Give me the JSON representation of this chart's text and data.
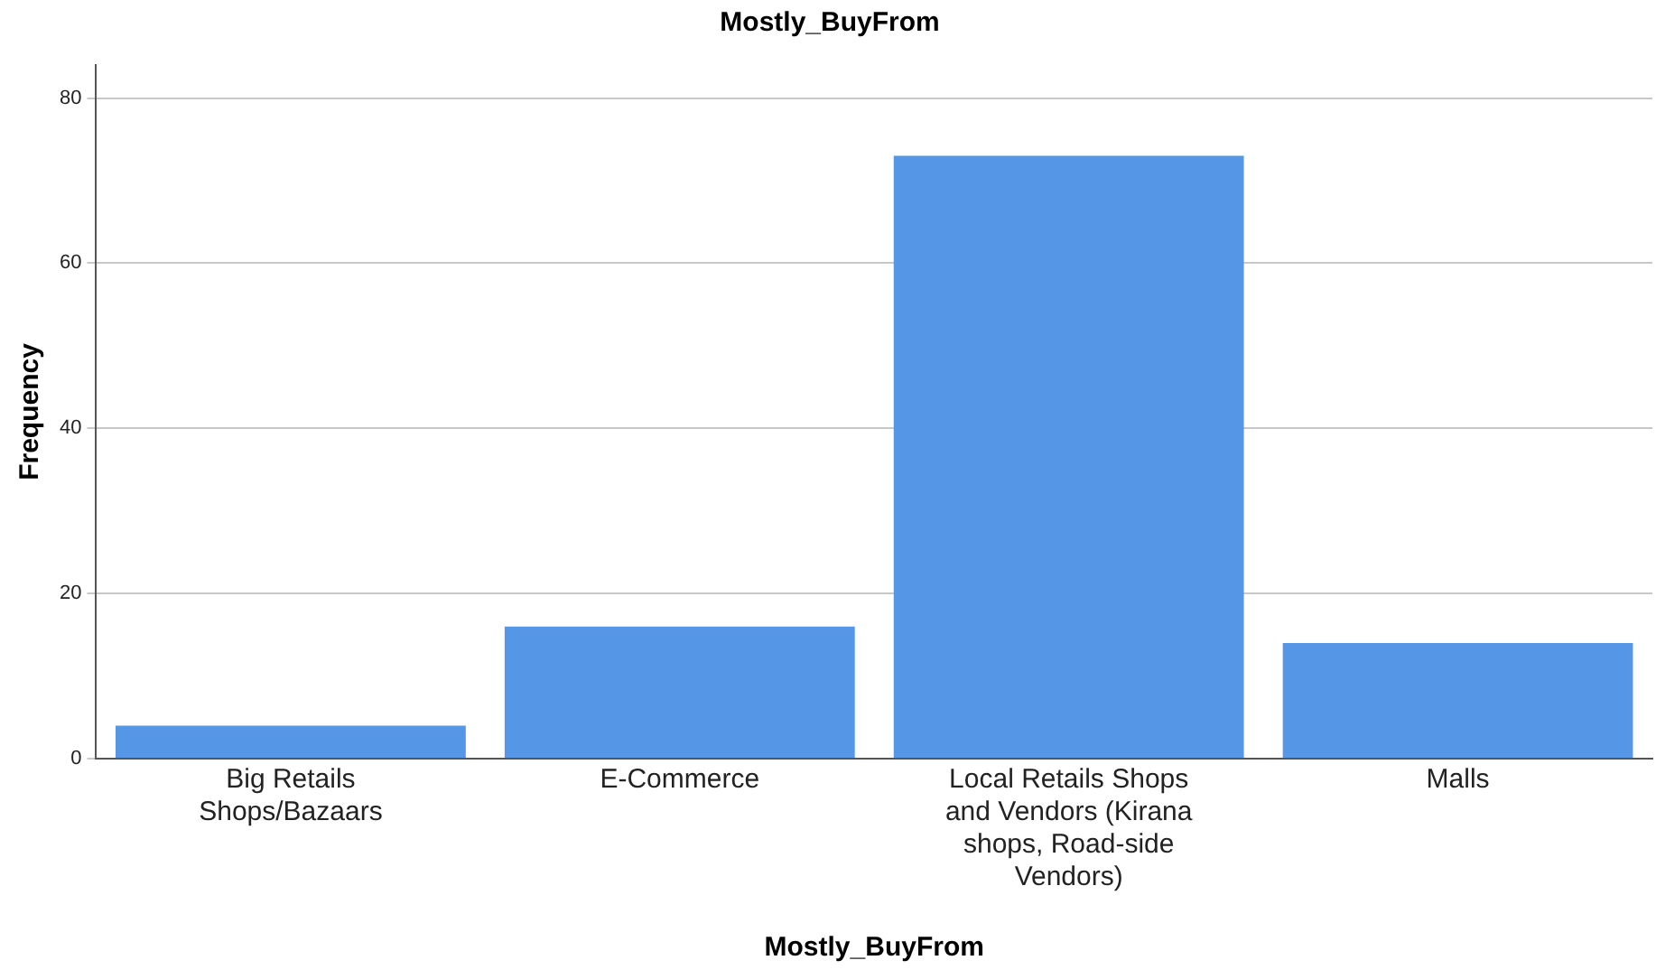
{
  "chart_data": {
    "type": "bar",
    "title": "Mostly_BuyFrom",
    "xlabel": "Mostly_BuyFrom",
    "ylabel": "Frequency",
    "categories": [
      "Big Retails Shops/Bazaars",
      "E-Commerce",
      "Local Retails Shops and Vendors (Kirana shops, Road-side Vendors)",
      "Malls"
    ],
    "values": [
      4,
      16,
      73,
      14
    ],
    "color": "#5596e6",
    "ylim": [
      0,
      84
    ],
    "yticks": [
      0,
      20,
      40,
      60,
      80
    ],
    "grid": "y"
  }
}
